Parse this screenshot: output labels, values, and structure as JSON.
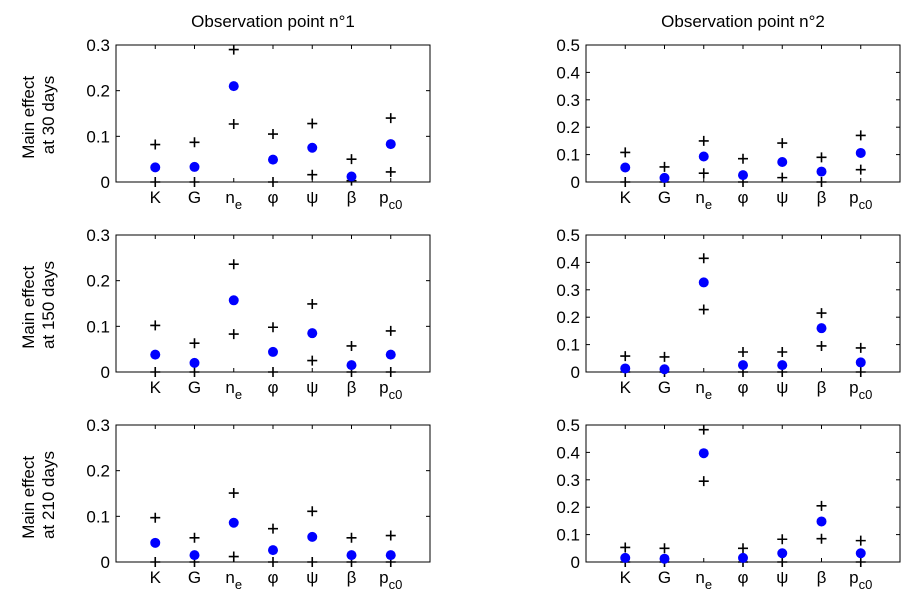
{
  "colors": {
    "point": "#0000ff",
    "bound": "#000000",
    "axis": "#000000",
    "background": "#ffffff"
  },
  "columns": [
    "Observation point n°1",
    "Observation point n°2"
  ],
  "rows": [
    {
      "line1": "Main effect",
      "line2": "at 30 days"
    },
    {
      "line1": "Main effect",
      "line2": "at 150 days"
    },
    {
      "line1": "Main effect",
      "line2": "at 210 days"
    }
  ],
  "chart_data": [
    {
      "type": "scatter",
      "title": "Observation point n°1",
      "ylabel": "Main effect at 30 days",
      "categories": [
        "K",
        "G",
        "ne",
        "φ",
        "ψ",
        "β",
        "pc0"
      ],
      "ylim": [
        0,
        0.3
      ],
      "yticks": [
        "0",
        "0.1",
        "0.2",
        "0.3"
      ],
      "values": [
        0.032,
        0.033,
        0.21,
        0.049,
        0.075,
        0.012,
        0.083
      ],
      "upper": [
        0.082,
        0.087,
        0.29,
        0.105,
        0.128,
        0.05,
        0.14
      ],
      "lower": [
        0.0,
        0.0,
        0.127,
        0.0,
        0.016,
        0.003,
        0.022
      ]
    },
    {
      "type": "scatter",
      "title": "Observation point n°2",
      "ylabel": "Main effect at 30 days",
      "categories": [
        "K",
        "G",
        "ne",
        "φ",
        "ψ",
        "β",
        "pc0"
      ],
      "ylim": [
        0,
        0.5
      ],
      "yticks": [
        "0",
        "0.1",
        "0.2",
        "0.3",
        "0.4",
        "0.5"
      ],
      "values": [
        0.053,
        0.015,
        0.093,
        0.025,
        0.073,
        0.038,
        0.106
      ],
      "upper": [
        0.108,
        0.055,
        0.15,
        0.085,
        0.142,
        0.09,
        0.17
      ],
      "lower": [
        0.0,
        0.0,
        0.032,
        0.0,
        0.016,
        0.0,
        0.045
      ]
    },
    {
      "type": "scatter",
      "ylabel": "Main effect at 150 days",
      "categories": [
        "K",
        "G",
        "ne",
        "φ",
        "ψ",
        "β",
        "pc0"
      ],
      "ylim": [
        0,
        0.3
      ],
      "yticks": [
        "0",
        "0.1",
        "0.2",
        "0.3"
      ],
      "values": [
        0.038,
        0.02,
        0.157,
        0.044,
        0.085,
        0.015,
        0.038
      ],
      "upper": [
        0.102,
        0.063,
        0.236,
        0.098,
        0.149,
        0.057,
        0.09
      ],
      "lower": [
        0.0,
        0.0,
        0.083,
        0.0,
        0.025,
        0.0,
        0.0
      ]
    },
    {
      "type": "scatter",
      "ylabel": "Main effect at 150 days",
      "categories": [
        "K",
        "G",
        "ne",
        "φ",
        "ψ",
        "β",
        "pc0"
      ],
      "ylim": [
        0,
        0.5
      ],
      "yticks": [
        "0",
        "0.1",
        "0.2",
        "0.3",
        "0.4",
        "0.5"
      ],
      "values": [
        0.013,
        0.01,
        0.327,
        0.025,
        0.025,
        0.16,
        0.035
      ],
      "upper": [
        0.058,
        0.055,
        0.415,
        0.073,
        0.073,
        0.215,
        0.088
      ],
      "lower": [
        0.0,
        0.0,
        0.228,
        0.0,
        0.0,
        0.095,
        0.0
      ]
    },
    {
      "type": "scatter",
      "ylabel": "Main effect at 210 days",
      "categories": [
        "K",
        "G",
        "ne",
        "φ",
        "ψ",
        "β",
        "pc0"
      ],
      "ylim": [
        0,
        0.3
      ],
      "yticks": [
        "0",
        "0.1",
        "0.2",
        "0.3"
      ],
      "values": [
        0.042,
        0.015,
        0.086,
        0.026,
        0.055,
        0.015,
        0.015
      ],
      "upper": [
        0.097,
        0.053,
        0.151,
        0.073,
        0.111,
        0.053,
        0.058
      ],
      "lower": [
        0.0,
        0.0,
        0.012,
        0.0,
        0.0,
        0.0,
        0.0
      ]
    },
    {
      "type": "scatter",
      "ylabel": "Main effect at 210 days",
      "categories": [
        "K",
        "G",
        "ne",
        "φ",
        "ψ",
        "β",
        "pc0"
      ],
      "ylim": [
        0,
        0.5
      ],
      "yticks": [
        "0",
        "0.1",
        "0.2",
        "0.3",
        "0.4",
        "0.5"
      ],
      "values": [
        0.015,
        0.012,
        0.397,
        0.015,
        0.032,
        0.148,
        0.032
      ],
      "upper": [
        0.053,
        0.05,
        0.483,
        0.05,
        0.083,
        0.205,
        0.078
      ],
      "lower": [
        0.0,
        0.0,
        0.295,
        0.0,
        0.0,
        0.085,
        0.0
      ]
    }
  ]
}
